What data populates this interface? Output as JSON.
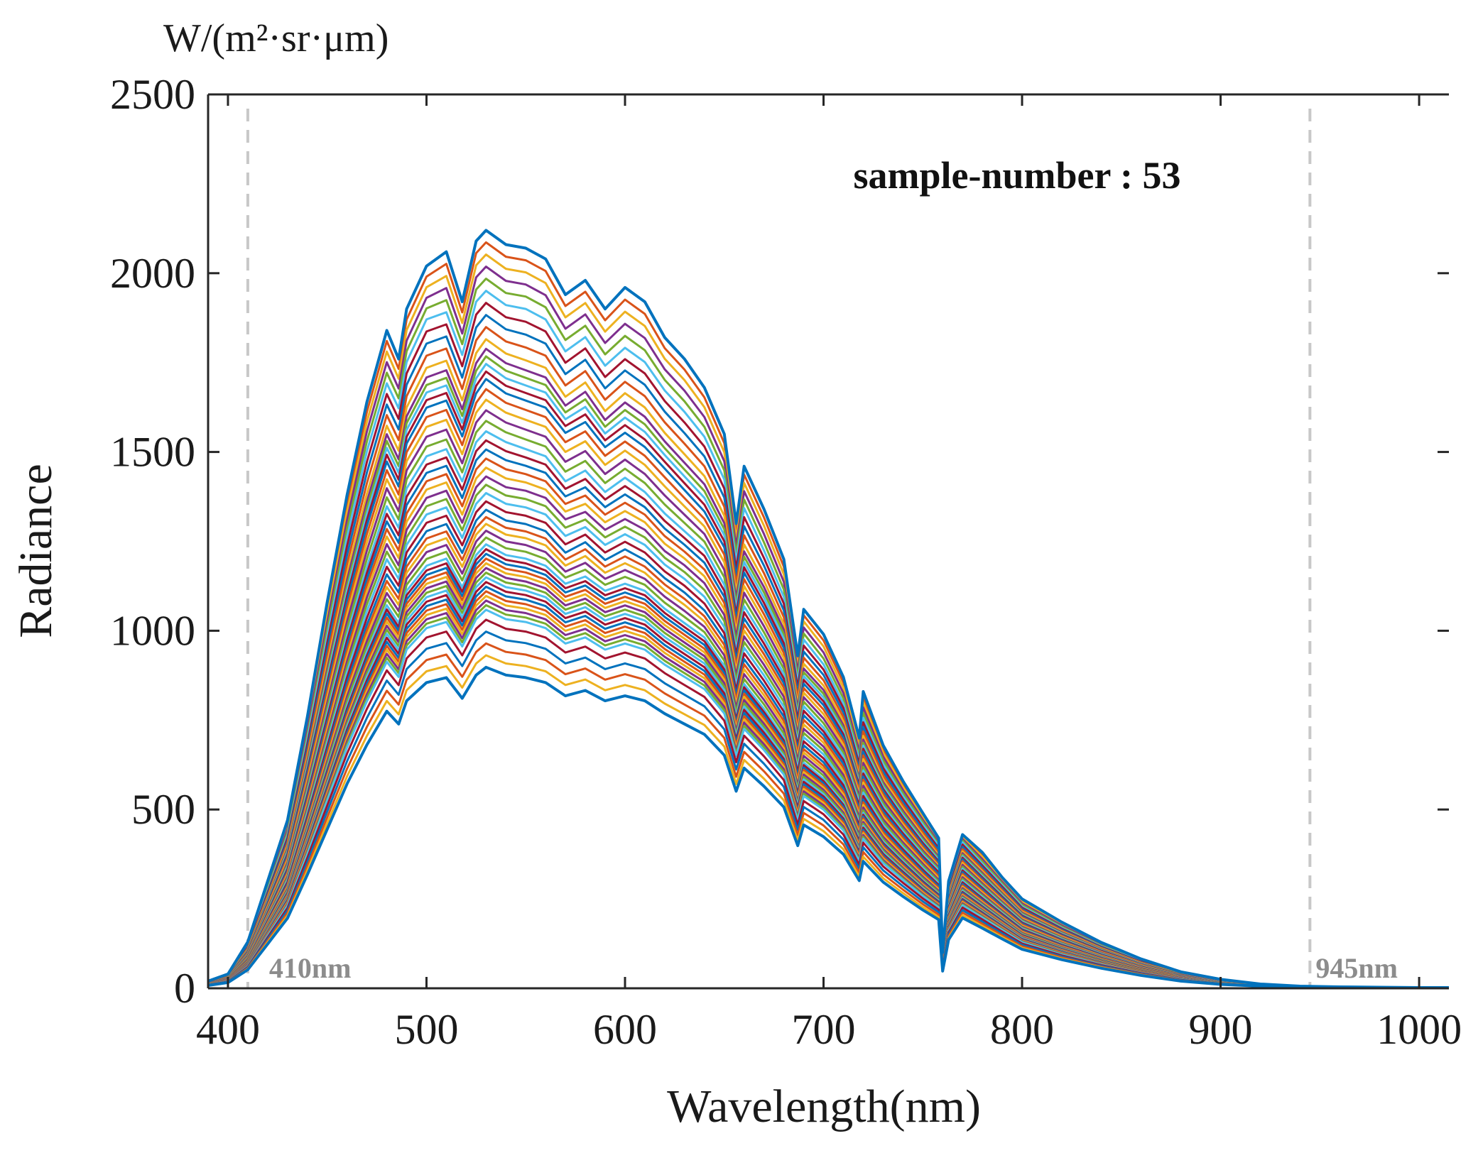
{
  "chart_data": {
    "type": "line",
    "xlabel": "Wavelength(nm)",
    "ylabel": "Radiance",
    "y_unit": "W/(m²·sr·μm)",
    "annotation": "sample-number : 53",
    "xlim": [
      390,
      1015
    ],
    "ylim": [
      0,
      2500
    ],
    "x_ticks": [
      400,
      500,
      600,
      700,
      800,
      900,
      1000
    ],
    "y_ticks": [
      0,
      500,
      1000,
      1500,
      2000,
      2500
    ],
    "grid": false,
    "legend": "none",
    "sample_count": 53,
    "reference_lines": [
      {
        "x": 410,
        "label": "410nm",
        "color": "#c8c8c8"
      },
      {
        "x": 945,
        "label": "945nm",
        "color": "#c8c8c8"
      }
    ],
    "x": [
      390,
      400,
      410,
      420,
      430,
      440,
      450,
      460,
      470,
      480,
      486,
      490,
      500,
      510,
      518,
      525,
      530,
      540,
      550,
      560,
      570,
      580,
      590,
      600,
      610,
      620,
      630,
      640,
      650,
      656,
      660,
      670,
      680,
      687,
      690,
      700,
      710,
      718,
      720,
      730,
      740,
      750,
      758,
      760,
      763,
      770,
      780,
      790,
      800,
      820,
      840,
      860,
      880,
      900,
      920,
      940,
      960,
      980,
      1000,
      1015
    ],
    "series_colors": [
      "#0072BD",
      "#D95319",
      "#EDB120",
      "#7E2F8E",
      "#77AC30",
      "#4DBEEE",
      "#A2142F"
    ],
    "series": [
      {
        "values": [
          20,
          40,
          130,
          300,
          470,
          760,
          1080,
          1380,
          1640,
          1840,
          1760,
          1900,
          2020,
          2060,
          1920,
          2090,
          2120,
          2080,
          2070,
          2040,
          1940,
          1980,
          1900,
          1960,
          1920,
          1820,
          1760,
          1680,
          1550,
          1300,
          1460,
          1340,
          1200,
          930,
          1060,
          990,
          870,
          700,
          830,
          680,
          580,
          490,
          420,
          100,
          300,
          430,
          380,
          310,
          250,
          185,
          128,
          82,
          46,
          25,
          12,
          6,
          4,
          3,
          2,
          2
        ]
      },
      {
        "values": [
          18,
          36,
          118,
          275,
          430,
          700,
          990,
          1270,
          1510,
          1700,
          1630,
          1760,
          1880,
          1900,
          1780,
          1930,
          1960,
          1920,
          1910,
          1880,
          1790,
          1830,
          1750,
          1800,
          1760,
          1680,
          1620,
          1550,
          1430,
          1200,
          1350,
          1230,
          1100,
          860,
          980,
          910,
          800,
          640,
          760,
          630,
          540,
          460,
          400,
          95,
          280,
          410,
          350,
          290,
          230,
          170,
          118,
          76,
          43,
          23,
          11,
          6,
          4,
          3,
          2,
          2
        ]
      },
      {
        "values": [
          16,
          33,
          108,
          250,
          395,
          640,
          900,
          1150,
          1370,
          1560,
          1490,
          1610,
          1720,
          1740,
          1630,
          1760,
          1800,
          1760,
          1740,
          1720,
          1640,
          1680,
          1600,
          1650,
          1610,
          1540,
          1480,
          1420,
          1310,
          1100,
          1230,
          1130,
          1010,
          790,
          900,
          840,
          740,
          590,
          700,
          580,
          500,
          425,
          370,
          90,
          260,
          380,
          325,
          268,
          213,
          158,
          110,
          70,
          40,
          22,
          10,
          5,
          4,
          3,
          2,
          2
        ]
      },
      {
        "values": [
          15,
          31,
          100,
          235,
          370,
          600,
          840,
          1080,
          1290,
          1470,
          1400,
          1520,
          1620,
          1640,
          1540,
          1660,
          1700,
          1660,
          1640,
          1620,
          1550,
          1580,
          1510,
          1550,
          1510,
          1450,
          1390,
          1330,
          1230,
          1030,
          1160,
          1060,
          950,
          740,
          850,
          790,
          700,
          560,
          660,
          550,
          470,
          400,
          350,
          85,
          245,
          360,
          305,
          252,
          200,
          148,
          103,
          66,
          37,
          20,
          10,
          5,
          3,
          2,
          2,
          2
        ]
      },
      {
        "values": [
          14,
          28,
          92,
          215,
          340,
          550,
          770,
          990,
          1180,
          1350,
          1290,
          1400,
          1490,
          1510,
          1420,
          1530,
          1560,
          1530,
          1510,
          1490,
          1420,
          1450,
          1390,
          1430,
          1390,
          1330,
          1280,
          1230,
          1130,
          950,
          1070,
          980,
          880,
          690,
          790,
          730,
          650,
          520,
          610,
          510,
          440,
          375,
          330,
          80,
          230,
          335,
          285,
          235,
          187,
          138,
          96,
          61,
          35,
          19,
          9,
          5,
          3,
          2,
          2,
          2
        ]
      },
      {
        "values": [
          13,
          26,
          85,
          200,
          315,
          510,
          715,
          920,
          1100,
          1250,
          1190,
          1290,
          1380,
          1400,
          1310,
          1410,
          1440,
          1410,
          1400,
          1380,
          1320,
          1340,
          1290,
          1320,
          1290,
          1230,
          1190,
          1140,
          1050,
          880,
          990,
          910,
          820,
          640,
          730,
          680,
          600,
          480,
          570,
          475,
          410,
          350,
          305,
          75,
          215,
          312,
          265,
          218,
          173,
          128,
          89,
          57,
          32,
          18,
          9,
          5,
          3,
          2,
          2,
          2
        ]
      },
      {
        "values": [
          12,
          24,
          78,
          185,
          290,
          470,
          660,
          850,
          1010,
          1150,
          1100,
          1190,
          1270,
          1290,
          1210,
          1300,
          1330,
          1300,
          1290,
          1270,
          1210,
          1240,
          1190,
          1220,
          1190,
          1140,
          1100,
          1050,
          970,
          815,
          915,
          840,
          755,
          590,
          675,
          628,
          555,
          445,
          525,
          440,
          380,
          324,
          283,
          70,
          200,
          290,
          246,
          203,
          161,
          119,
          83,
          53,
          30,
          16,
          8,
          4,
          3,
          2,
          2,
          2
        ]
      },
      {
        "values": [
          11,
          22,
          72,
          172,
          270,
          440,
          615,
          790,
          940,
          1070,
          1020,
          1110,
          1180,
          1200,
          1120,
          1210,
          1240,
          1210,
          1200,
          1180,
          1130,
          1150,
          1110,
          1130,
          1110,
          1060,
          1020,
          980,
          900,
          760,
          850,
          780,
          700,
          550,
          630,
          585,
          518,
          415,
          490,
          410,
          355,
          302,
          264,
          66,
          188,
          272,
          231,
          190,
          150,
          111,
          78,
          50,
          28,
          15,
          8,
          4,
          3,
          2,
          2,
          2
        ]
      },
      {
        "values": [
          10,
          21,
          68,
          163,
          256,
          417,
          583,
          750,
          893,
          1016,
          970,
          1054,
          1121,
          1140,
          1064,
          1150,
          1178,
          1150,
          1140,
          1121,
          1073,
          1092,
          1054,
          1073,
          1054,
          1007,
          969,
          931,
          855,
          722,
          808,
          741,
          665,
          523,
          599,
          556,
          492,
          394,
          466,
          390,
          337,
          287,
          251,
          63,
          179,
          258,
          219,
          180,
          143,
          105,
          74,
          47,
          27,
          14,
          7,
          4,
          3,
          2,
          2,
          2
        ]
      },
      {
        "values": [
          10,
          20,
          64,
          154,
          243,
          396,
          553,
          711,
          846,
          963,
          918,
          999,
          1062,
          1080,
          1008,
          1089,
          1116,
          1089,
          1080,
          1062,
          1017,
          1035,
          999,
          1017,
          999,
          954,
          918,
          882,
          810,
          684,
          765,
          702,
          630,
          495,
          567,
          527,
          466,
          374,
          441,
          369,
          320,
          272,
          238,
          59,
          169,
          245,
          208,
          171,
          135,
          100,
          70,
          45,
          25,
          14,
          7,
          4,
          3,
          2,
          2,
          2
        ]
      },
      {
        "values": [
          9,
          19,
          61,
          146,
          230,
          374,
          523,
          672,
          800,
          910,
          868,
          944,
          1004,
          1021,
          953,
          1029,
          1055,
          1029,
          1021,
          1004,
          961,
          978,
          944,
          961,
          944,
          902,
          868,
          834,
          766,
          647,
          723,
          664,
          596,
          468,
          536,
          498,
          440,
          353,
          417,
          349,
          302,
          257,
          225,
          56,
          160,
          231,
          197,
          162,
          128,
          94,
          66,
          43,
          24,
          13,
          7,
          3,
          2,
          2,
          2,
          2
        ]
      },
      {
        "values": [
          8,
          16,
          52,
          124,
          196,
          318,
          445,
          572,
          681,
          775,
          739,
          804,
          855,
          869,
          811,
          876,
          898,
          876,
          869,
          855,
          818,
          833,
          804,
          818,
          804,
          768,
          739,
          710,
          652,
          551,
          616,
          565,
          507,
          399,
          457,
          424,
          375,
          301,
          355,
          297,
          257,
          219,
          192,
          48,
          136,
          197,
          168,
          138,
          109,
          80,
          56,
          36,
          20,
          11,
          6,
          3,
          2,
          2,
          2,
          2
        ]
      }
    ]
  }
}
